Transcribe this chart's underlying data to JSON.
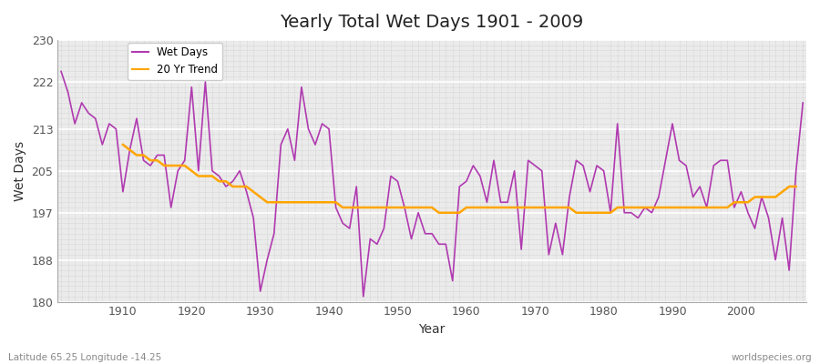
{
  "title": "Yearly Total Wet Days 1901 - 2009",
  "xlabel": "Year",
  "ylabel": "Wet Days",
  "ylim": [
    180,
    230
  ],
  "yticks": [
    180,
    188,
    197,
    205,
    213,
    222,
    230
  ],
  "fig_bg_color": "#ffffff",
  "plot_bg_color": "#ebebeb",
  "wet_days_color": "#b03ab0",
  "trend_color": "#FFA500",
  "subtitle_left": "Latitude 65.25 Longitude -14.25",
  "subtitle_right": "worldspecies.org",
  "legend_labels": [
    "Wet Days",
    "20 Yr Trend"
  ],
  "years": [
    1901,
    1902,
    1903,
    1904,
    1905,
    1906,
    1907,
    1908,
    1909,
    1910,
    1911,
    1912,
    1913,
    1914,
    1915,
    1916,
    1917,
    1918,
    1919,
    1920,
    1921,
    1922,
    1923,
    1924,
    1925,
    1926,
    1927,
    1928,
    1929,
    1930,
    1931,
    1932,
    1933,
    1934,
    1935,
    1936,
    1937,
    1938,
    1939,
    1940,
    1941,
    1942,
    1943,
    1944,
    1945,
    1946,
    1947,
    1948,
    1949,
    1950,
    1951,
    1952,
    1953,
    1954,
    1955,
    1956,
    1957,
    1958,
    1959,
    1960,
    1961,
    1962,
    1963,
    1964,
    1965,
    1966,
    1967,
    1968,
    1969,
    1970,
    1971,
    1972,
    1973,
    1974,
    1975,
    1976,
    1977,
    1978,
    1979,
    1980,
    1981,
    1982,
    1983,
    1984,
    1985,
    1986,
    1987,
    1988,
    1989,
    1990,
    1991,
    1992,
    1993,
    1994,
    1995,
    1996,
    1997,
    1998,
    1999,
    2000,
    2001,
    2002,
    2003,
    2004,
    2005,
    2006,
    2007,
    2008,
    2009
  ],
  "wet_days": [
    224,
    220,
    214,
    218,
    216,
    215,
    210,
    214,
    213,
    201,
    209,
    215,
    207,
    206,
    208,
    208,
    198,
    205,
    207,
    221,
    205,
    222,
    205,
    204,
    202,
    203,
    205,
    201,
    196,
    182,
    188,
    193,
    210,
    213,
    207,
    221,
    213,
    210,
    214,
    213,
    198,
    195,
    194,
    202,
    181,
    192,
    191,
    194,
    204,
    203,
    198,
    192,
    197,
    193,
    193,
    191,
    191,
    184,
    202,
    203,
    206,
    204,
    199,
    207,
    199,
    199,
    205,
    190,
    207,
    206,
    205,
    189,
    195,
    189,
    200,
    207,
    206,
    201,
    206,
    205,
    197,
    214,
    197,
    197,
    196,
    198,
    197,
    200,
    207,
    214,
    207,
    206,
    200,
    202,
    198,
    206,
    207,
    207,
    198,
    201,
    197,
    194,
    200,
    196,
    188,
    196,
    186,
    205,
    218
  ],
  "trend": [
    null,
    null,
    null,
    null,
    null,
    null,
    null,
    null,
    null,
    210,
    209,
    208,
    208,
    207,
    207,
    206,
    206,
    206,
    206,
    205,
    204,
    204,
    204,
    203,
    203,
    202,
    202,
    202,
    201,
    200,
    199,
    199,
    199,
    199,
    199,
    199,
    199,
    199,
    199,
    199,
    199,
    198,
    198,
    198,
    198,
    198,
    198,
    198,
    198,
    198,
    198,
    198,
    198,
    198,
    198,
    197,
    197,
    197,
    197,
    198,
    198,
    198,
    198,
    198,
    198,
    198,
    198,
    198,
    198,
    198,
    198,
    198,
    198,
    198,
    198,
    197,
    197,
    197,
    197,
    197,
    197,
    198,
    198,
    198,
    198,
    198,
    198,
    198,
    198,
    198,
    198,
    198,
    198,
    198,
    198,
    198,
    198,
    198,
    199,
    199,
    199,
    200,
    200,
    200,
    200,
    201,
    202,
    202,
    null
  ]
}
